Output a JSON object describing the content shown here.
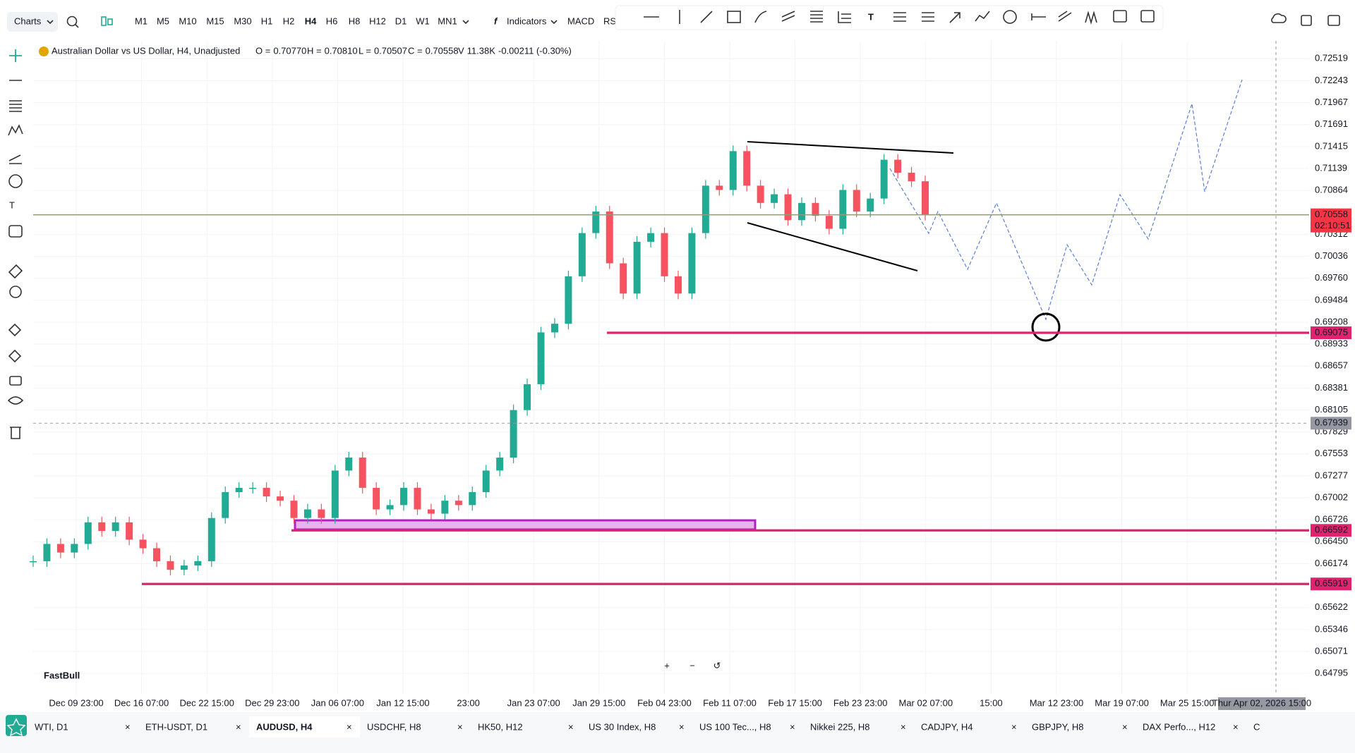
{
  "toolbar": {
    "menu": "Charts",
    "timeframes": [
      {
        "label": "M1"
      },
      {
        "label": "M5"
      },
      {
        "label": "M10"
      },
      {
        "label": "M15"
      },
      {
        "label": "M30"
      },
      {
        "label": "H1"
      },
      {
        "label": "H2"
      },
      {
        "label": "H4",
        "active": true
      },
      {
        "label": "H6"
      },
      {
        "label": "H8"
      },
      {
        "label": "H12"
      },
      {
        "label": "D1"
      },
      {
        "label": "W1"
      },
      {
        "label": "MN1"
      }
    ],
    "indicators": "Indicators",
    "macd": "MACD",
    "rs": "RS"
  },
  "symbol": {
    "name": "Australian Dollar vs US Dollar, H4, Unadjusted",
    "open": {
      "label": "O =",
      "value": "0.70770"
    },
    "high": {
      "label": "H =",
      "value": "0.70810"
    },
    "low": {
      "label": "L =",
      "value": "0.70507"
    },
    "close": {
      "label": "C =",
      "value": "0.70558"
    },
    "volume": {
      "label": "V",
      "value": "11.38K"
    },
    "change": "-0.00211 (-0.30%)"
  },
  "price_axis": {
    "ticks": [
      0.72519,
      0.72243,
      0.71967,
      0.71691,
      0.71415,
      0.71139,
      0.70864,
      0.70312,
      0.70036,
      {
        "value": 0.6976,
        "label": "0.69760"
      },
      0.69484,
      0.69208,
      0.68933,
      0.68657,
      0.68381,
      0.68105,
      0.67829,
      0.67553,
      0.67277,
      0.67002,
      0.66726,
      {
        "value": 0.6645,
        "label": "0.66450"
      },
      0.66174,
      0.65622,
      0.65346,
      0.65071,
      0.64795
    ],
    "current": {
      "value": 0.70558,
      "label": "0.70558",
      "countdown": "02:10:51"
    },
    "levels": [
      {
        "value": 0.69075,
        "label": "0.69075"
      },
      {
        "value": 0.66592,
        "label": "0.66592"
      },
      {
        "value": 0.65919,
        "label": "0.65919"
      }
    ],
    "crosshair": {
      "value": 0.67939,
      "label": "0.67939"
    }
  },
  "time_axis": {
    "labels": [
      "Dec 09 23:00",
      "Dec 16 07:00",
      "Dec 22 15:00",
      "Dec 29 23:00",
      "Jan 06 07:00",
      "Jan 12 15:00",
      "23:00",
      "Jan 23 07:00",
      "Jan 29 15:00",
      "Feb 04 23:00",
      "Feb 11 07:00",
      "Feb 17 15:00",
      "Feb 23 23:00",
      "Mar 02 07:00",
      "15:00",
      "Mar 12 23:00",
      "Mar 19 07:00",
      "Mar 25 15:00"
    ],
    "crosshair": "Thur Apr 02, 2026 15:00"
  },
  "price": {
    "closes": [
      0.66205,
      0.66422,
      0.66314,
      0.66422,
      0.66693,
      0.66585,
      0.66693,
      0.66476,
      0.66368,
      0.66205,
      0.66097,
      0.66151,
      0.66205,
      0.66748,
      0.67073,
      0.67127,
      0.67127,
      0.67019,
      0.66965,
      0.66748,
      0.66856,
      0.66748,
      0.67344,
      0.67507,
      0.67127,
      0.66856,
      0.6691,
      0.67127,
      0.66856,
      0.66802,
      0.66965,
      0.6691,
      0.67073,
      0.67344,
      0.67507,
      0.68104,
      0.68429,
      0.6908,
      0.69189,
      0.69785,
      0.70328,
      0.70599,
      0.69948,
      0.69568,
      0.70219,
      0.70328,
      0.69785,
      0.69568,
      0.70328,
      0.70924,
      0.7087,
      0.71358,
      0.70924,
      0.70707,
      0.70816,
      0.7049,
      0.70707,
      0.70545,
      0.70382,
      0.7087,
      0.70599,
      0.70762,
      0.7125,
      0.71087,
      0.70979,
      0.70558
    ]
  },
  "watermark": "FastBull",
  "tabs": [
    {
      "label": "WTI, D1"
    },
    {
      "label": "ETH-USDT, D1"
    },
    {
      "label": "AUDUSD, H4",
      "active": true
    },
    {
      "label": "USDCHF, H8"
    },
    {
      "label": "HK50, H12"
    },
    {
      "label": "US 30 Index, H8"
    },
    {
      "label": "US 100 Tec..., H8"
    },
    {
      "label": "Nikkei 225, H8"
    },
    {
      "label": "CADJPY, H4"
    },
    {
      "label": "GBPJPY, H8"
    },
    {
      "label": "DAX Perfo..., H12"
    },
    {
      "label": "C"
    }
  ]
}
